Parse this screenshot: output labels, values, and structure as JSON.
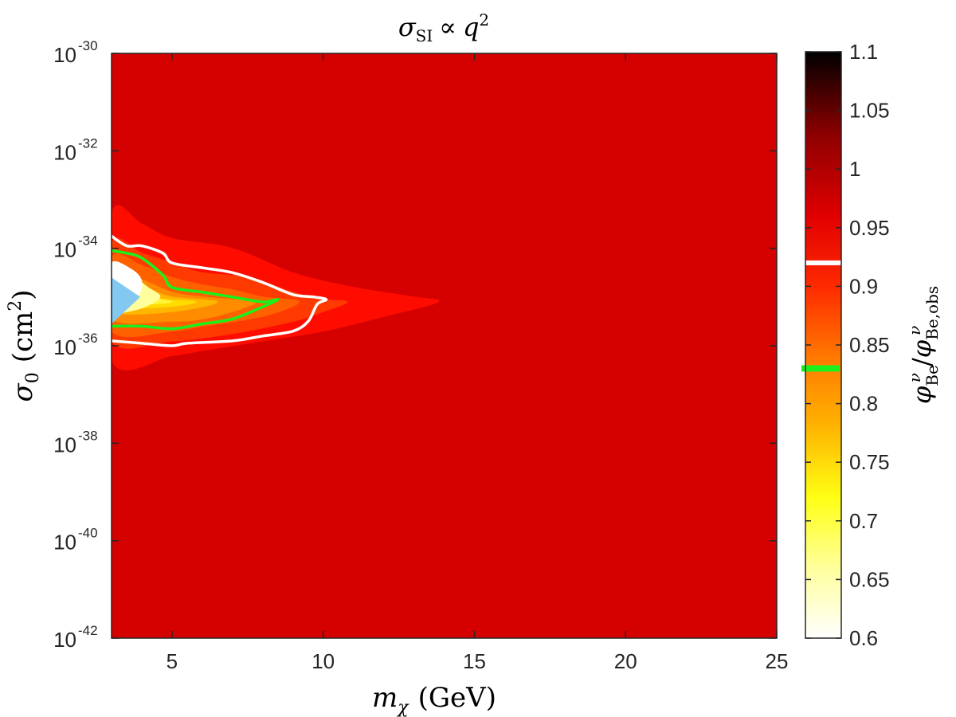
{
  "chart_data": {
    "type": "heatmap",
    "title": "σ_SI ∝ q^2",
    "title_parts": {
      "base": "σ",
      "sub": "SI",
      "rel": "∝",
      "var": "q",
      "sup": "2"
    },
    "xlabel": "m_χ (GeV)",
    "xlabel_parts": {
      "base": "m",
      "sub": "χ",
      "rest": "(GeV)"
    },
    "ylabel": "σ_0 (cm^2)",
    "ylabel_parts": {
      "base": "σ",
      "sub": "0",
      "rest1": "(cm",
      "sup": "2",
      "rest2": ")"
    },
    "x_scale": "linear",
    "y_scale": "log",
    "xlim": [
      3,
      25
    ],
    "ylim": [
      1e-42,
      1e-30
    ],
    "x_ticks": [
      {
        "value": 5,
        "label": "5"
      },
      {
        "value": 10,
        "label": "10"
      },
      {
        "value": 15,
        "label": "15"
      },
      {
        "value": 20,
        "label": "20"
      },
      {
        "value": 25,
        "label": "25"
      }
    ],
    "y_ticks": [
      {
        "exp": -42,
        "base": "10",
        "sup": "-42"
      },
      {
        "exp": -40,
        "base": "10",
        "sup": "-40"
      },
      {
        "exp": -38,
        "base": "10",
        "sup": "-38"
      },
      {
        "exp": -36,
        "base": "10",
        "sup": "-36"
      },
      {
        "exp": -34,
        "base": "10",
        "sup": "-34"
      },
      {
        "exp": -32,
        "base": "10",
        "sup": "-32"
      },
      {
        "exp": -30,
        "base": "10",
        "sup": "-30"
      }
    ],
    "background_level": 0.98,
    "regions": [
      {
        "level": 0.95,
        "color": "#ff0c00",
        "points": [
          [
            3,
            -33.3
          ],
          [
            4,
            -33.5
          ],
          [
            5,
            -33.8
          ],
          [
            7,
            -34.0
          ],
          [
            9,
            -34.5
          ],
          [
            11,
            -34.8
          ],
          [
            13,
            -35.0
          ],
          [
            13.8,
            -35.1
          ],
          [
            12,
            -35.4
          ],
          [
            10,
            -35.7
          ],
          [
            8,
            -35.9
          ],
          [
            6,
            -36.1
          ],
          [
            5,
            -36.2
          ],
          [
            3,
            -36.3
          ]
        ]
      },
      {
        "level": 0.9,
        "color": "#ff3a00",
        "points": [
          [
            3,
            -33.9
          ],
          [
            4,
            -34.1
          ],
          [
            5,
            -34.3
          ],
          [
            6,
            -34.5
          ],
          [
            7.5,
            -34.6
          ],
          [
            9,
            -34.9
          ],
          [
            10,
            -35.05
          ],
          [
            10.8,
            -35.1
          ],
          [
            10,
            -35.3
          ],
          [
            9,
            -35.5
          ],
          [
            7,
            -35.75
          ],
          [
            5,
            -35.9
          ],
          [
            3,
            -35.9
          ]
        ]
      },
      {
        "level": 0.87,
        "color": "#ff6000",
        "points": [
          [
            3,
            -34.2
          ],
          [
            4,
            -34.35
          ],
          [
            5,
            -34.6
          ],
          [
            6,
            -34.75
          ],
          [
            7,
            -34.85
          ],
          [
            8,
            -35.0
          ],
          [
            9.2,
            -35.1
          ],
          [
            8,
            -35.4
          ],
          [
            6,
            -35.6
          ],
          [
            5,
            -35.7
          ],
          [
            3,
            -35.7
          ]
        ]
      },
      {
        "level": 0.82,
        "color": "#ff8c00",
        "points": [
          [
            3,
            -34.5
          ],
          [
            4,
            -34.65
          ],
          [
            5,
            -34.9
          ],
          [
            6,
            -35.0
          ],
          [
            7,
            -35.05
          ],
          [
            7.8,
            -35.1
          ],
          [
            7,
            -35.3
          ],
          [
            6,
            -35.45
          ],
          [
            5,
            -35.5
          ],
          [
            3,
            -35.45
          ]
        ]
      },
      {
        "level": 0.78,
        "color": "#ffb600",
        "points": [
          [
            3,
            -34.7
          ],
          [
            4,
            -34.8
          ],
          [
            5,
            -35.0
          ],
          [
            6.5,
            -35.1
          ],
          [
            5,
            -35.3
          ],
          [
            3,
            -35.3
          ]
        ]
      },
      {
        "level": 0.74,
        "color": "#ffdc00",
        "points": [
          [
            3,
            -34.8
          ],
          [
            4,
            -34.95
          ],
          [
            4.8,
            -35.05
          ],
          [
            5.8,
            -35.1
          ],
          [
            4.8,
            -35.2
          ],
          [
            3,
            -35.2
          ]
        ]
      },
      {
        "level": 0.7,
        "color": "#fff53a",
        "points": [
          [
            3,
            -34.9
          ],
          [
            4,
            -35.0
          ],
          [
            5,
            -35.1
          ],
          [
            4,
            -35.15
          ],
          [
            3,
            -35.15
          ]
        ]
      },
      {
        "level": 0.66,
        "color": "#ffff9c",
        "points": [
          [
            3,
            -34.5
          ],
          [
            3.6,
            -34.55
          ],
          [
            4.2,
            -34.8
          ],
          [
            4.6,
            -35.0
          ],
          [
            4.1,
            -35.2
          ],
          [
            3.5,
            -35.3
          ],
          [
            3,
            -35.3
          ]
        ]
      },
      {
        "level": 0.6,
        "color": "#ffffff",
        "points": [
          [
            3,
            -34.3
          ],
          [
            3.7,
            -34.45
          ],
          [
            4,
            -34.7
          ],
          [
            3.8,
            -35.0
          ],
          [
            3,
            -35.0
          ]
        ]
      }
    ],
    "excluded_region": {
      "color": "#82c8f0",
      "points": [
        [
          3,
          -34.6
        ],
        [
          3.95,
          -35.0
        ],
        [
          3,
          -35.55
        ]
      ]
    },
    "contours": [
      {
        "name": "white",
        "color": "#ffffff",
        "level": 0.92,
        "points": [
          [
            3,
            -33.75
          ],
          [
            3.5,
            -33.95
          ],
          [
            4,
            -33.95
          ],
          [
            4.7,
            -34.1
          ],
          [
            5,
            -34.3
          ],
          [
            6,
            -34.4
          ],
          [
            7,
            -34.5
          ],
          [
            8,
            -34.7
          ],
          [
            9,
            -34.95
          ],
          [
            9.7,
            -35.0
          ],
          [
            10.1,
            -35.05
          ],
          [
            9.8,
            -35.15
          ],
          [
            9.5,
            -35.5
          ],
          [
            9,
            -35.7
          ],
          [
            8,
            -35.8
          ],
          [
            7,
            -35.9
          ],
          [
            5.5,
            -35.95
          ],
          [
            5,
            -36.0
          ],
          [
            4,
            -35.95
          ],
          [
            3,
            -35.9
          ]
        ]
      },
      {
        "name": "green",
        "color": "#1cf01c",
        "level": 0.83,
        "points": [
          [
            3,
            -34.05
          ],
          [
            3.5,
            -34.1
          ],
          [
            4,
            -34.2
          ],
          [
            4.7,
            -34.55
          ],
          [
            5,
            -34.8
          ],
          [
            6,
            -34.9
          ],
          [
            7,
            -35.0
          ],
          [
            8,
            -35.1
          ],
          [
            8.5,
            -35.05
          ],
          [
            8,
            -35.2
          ],
          [
            7,
            -35.45
          ],
          [
            6,
            -35.55
          ],
          [
            5,
            -35.65
          ],
          [
            4,
            -35.6
          ],
          [
            3,
            -35.6
          ]
        ]
      }
    ],
    "colorbar": {
      "min": 0.6,
      "max": 1.1,
      "ticks": [
        "0.6",
        "0.65",
        "0.7",
        "0.75",
        "0.8",
        "0.85",
        "0.9",
        "0.95",
        "1",
        "1.05",
        "1.1"
      ],
      "tick_values": [
        0.6,
        0.65,
        0.7,
        0.75,
        0.8,
        0.85,
        0.9,
        0.95,
        1,
        1.05,
        1.1
      ],
      "white_marker": 0.92,
      "green_marker": 0.83,
      "label_parts": {
        "num": "φ",
        "num_sub": "Be",
        "num_sup": "ν",
        "slash": "/",
        "den": "φ",
        "den_sub": "Be,obs",
        "den_sup": "ν"
      },
      "stops": [
        {
          "v": 0.6,
          "c": "#ffffff"
        },
        {
          "v": 0.66,
          "c": "#ffff9c"
        },
        {
          "v": 0.72,
          "c": "#ffff14"
        },
        {
          "v": 0.78,
          "c": "#ffb400"
        },
        {
          "v": 0.84,
          "c": "#ff7800"
        },
        {
          "v": 0.9,
          "c": "#ff2a00"
        },
        {
          "v": 0.96,
          "c": "#e10000"
        },
        {
          "v": 1.03,
          "c": "#8c0000"
        },
        {
          "v": 1.1,
          "c": "#000000"
        }
      ]
    }
  }
}
